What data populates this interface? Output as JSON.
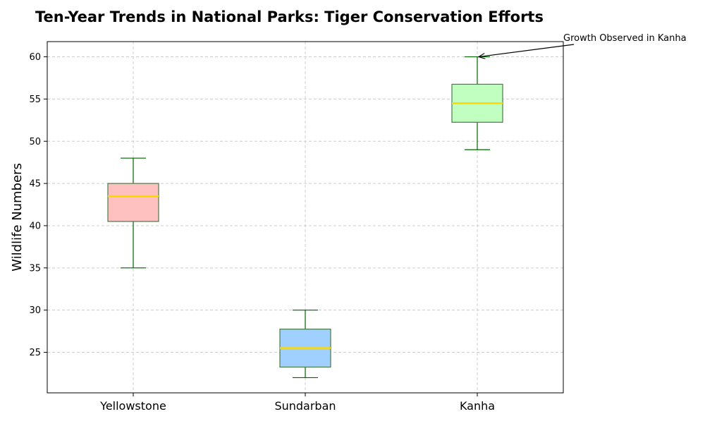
{
  "chart_data": {
    "type": "box",
    "title": "Ten-Year Trends in National Parks: Tiger Conservation Efforts",
    "xlabel": "",
    "ylabel": "Wildlife Numbers",
    "ylim": [
      20.2,
      61.8
    ],
    "yticks": [
      25,
      30,
      35,
      40,
      45,
      50,
      55,
      60
    ],
    "grid": true,
    "categories": [
      "Yellowstone",
      "Sundarban",
      "Kanha"
    ],
    "boxes": [
      {
        "category": "Yellowstone",
        "whisker_low": 35,
        "q1": 40.5,
        "median": 43.5,
        "q3": 45,
        "whisker_high": 48,
        "color": "#ffc0c0"
      },
      {
        "category": "Sundarban",
        "whisker_low": 22,
        "q1": 23.25,
        "median": 25.5,
        "q3": 27.75,
        "whisker_high": 30,
        "color": "#a0d0ff"
      },
      {
        "category": "Kanha",
        "whisker_low": 49,
        "q1": 52.25,
        "median": 54.5,
        "q3": 56.75,
        "whisker_high": 60,
        "color": "#c0ffc0"
      }
    ],
    "annotation": {
      "text": "Growth Observed in Kanha",
      "target_category": "Kanha",
      "target_value": 60
    },
    "colors": {
      "whisker": "#006400",
      "median": "#ffd700",
      "box_edge": "#4a7a4a",
      "grid": "#cccccc"
    }
  }
}
